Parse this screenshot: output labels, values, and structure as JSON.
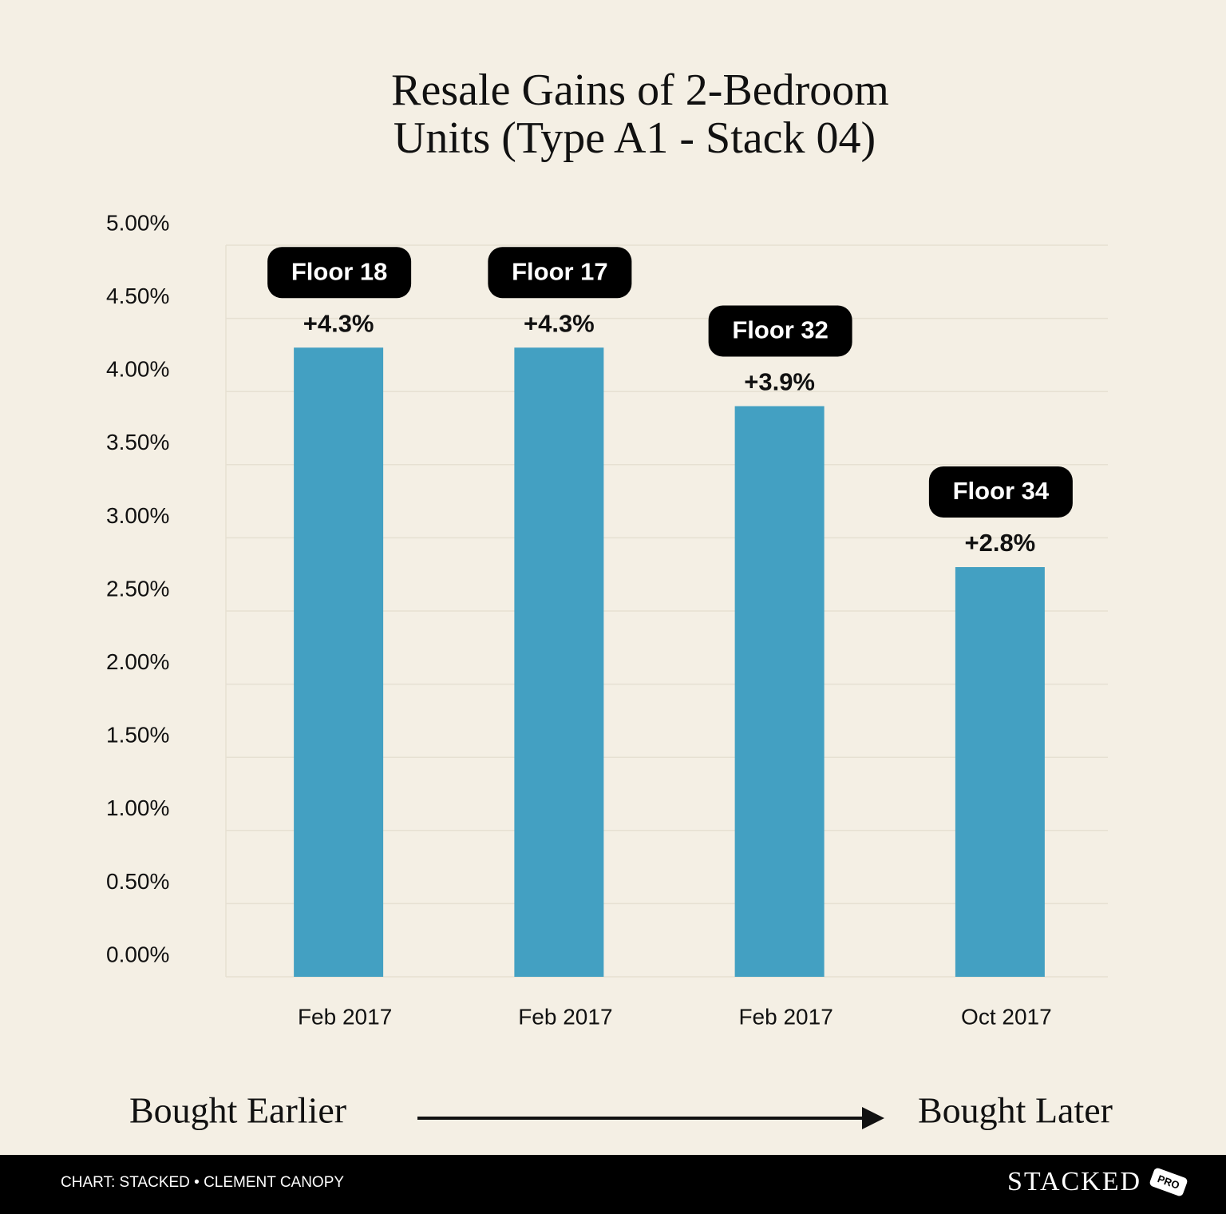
{
  "chart_data": {
    "type": "bar",
    "title": [
      "Resale Gains of 2-Bedroom",
      "Units (Type A1 - Stack 04)"
    ],
    "categories": [
      "Feb 2017",
      "Feb 2017",
      "Feb 2017",
      "Oct 2017"
    ],
    "values": [
      4.3,
      4.3,
      3.9,
      2.8
    ],
    "value_labels": [
      "+4.3%",
      "+4.3%",
      "+3.9%",
      "+2.8%"
    ],
    "annotations": [
      "Floor 18",
      "Floor 17",
      "Floor 32",
      "Floor 34"
    ],
    "color": "#43a0c2",
    "ylim": [
      0,
      5
    ],
    "yticks": [
      {
        "value": 0,
        "label": "0.00%"
      },
      {
        "value": 0.5,
        "label": "0.50%"
      },
      {
        "value": 1,
        "label": "1.00%"
      },
      {
        "value": 1.5,
        "label": "1.50%"
      },
      {
        "value": 2,
        "label": "2.00%"
      },
      {
        "value": 2.5,
        "label": "2.50%"
      },
      {
        "value": 3,
        "label": "3.00%"
      },
      {
        "value": 3.5,
        "label": "3.50%"
      },
      {
        "value": 4,
        "label": "4.00%"
      },
      {
        "value": 4.5,
        "label": "4.50%"
      },
      {
        "value": 5,
        "label": "5.00%"
      }
    ],
    "grid": true,
    "x_direction_labels": [
      "Bought Earlier",
      "Bought Later"
    ]
  },
  "footer": {
    "credit": "CHART: STACKED • CLEMENT CANOPY",
    "logo": "STACKED",
    "badge": "PRO"
  }
}
